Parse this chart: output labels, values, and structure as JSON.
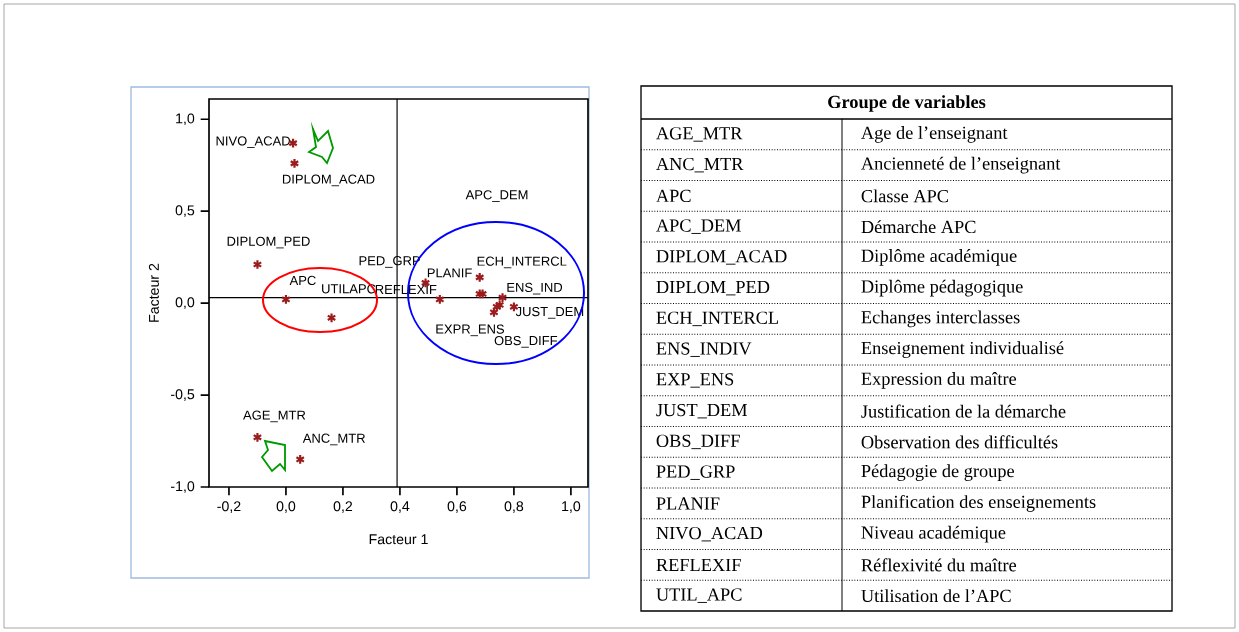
{
  "chart_data": [
    {
      "type": "scatter",
      "xlabel": "Facteur 1",
      "ylabel": "Facteur 2",
      "x": [
        0.025,
        0.03,
        -0.1,
        0.0,
        0.16,
        -0.1,
        0.05,
        0.49,
        0.54,
        0.68,
        0.68,
        0.69,
        0.76,
        0.8,
        0.75,
        0.74,
        0.73
      ],
      "series": [
        {
          "color": "#9b1c1c",
          "values": [
            0.87,
            0.76,
            0.21,
            0.02,
            -0.08,
            -0.73,
            -0.85,
            0.11,
            0.02,
            0.14,
            0.05,
            0.05,
            0.03,
            -0.02,
            -0.01,
            -0.02,
            -0.05
          ]
        }
      ],
      "marker": "cross",
      "xlim": [
        -0.27,
        1.06
      ],
      "ylim": [
        -1.0,
        1.11
      ],
      "xticks": [
        {
          "value": -0.2,
          "label": "-0,2"
        },
        {
          "value": 0.0,
          "label": "0,0"
        },
        {
          "value": 0.2,
          "label": "0,2"
        },
        {
          "value": 0.4,
          "label": "0,4"
        },
        {
          "value": 0.6,
          "label": "0,6"
        },
        {
          "value": 0.8,
          "label": "0,8"
        },
        {
          "value": 1.0,
          "label": "1,0"
        }
      ],
      "yticks": [
        {
          "value": -1.0,
          "label": "-1,0"
        },
        {
          "value": -0.5,
          "label": "-0,5"
        },
        {
          "value": 0.0,
          "label": "0,0"
        },
        {
          "value": 0.5,
          "label": "0,5"
        },
        {
          "value": 1.0,
          "label": "1,0"
        }
      ],
      "ref_lines": [
        {
          "axis": "x",
          "value": 0.39,
          "color": "#000000"
        },
        {
          "axis": "y",
          "value": 0.03,
          "color": "#000000"
        }
      ],
      "annotations": [
        {
          "text": "NIVO_ACAD",
          "x": 0.025,
          "y": 0.87
        },
        {
          "text": "DIPLOM_ACAD",
          "x": 0.03,
          "y": 0.76
        },
        {
          "text": "DIPLOM_PED",
          "x": -0.1,
          "y": 0.21
        },
        {
          "text": "APC",
          "x": 0.0,
          "y": 0.02
        },
        {
          "text": "UTILAPC",
          "x": 0.16,
          "y": -0.08
        },
        {
          "text": "PED_GRP",
          "x": 0.49,
          "y": 0.11
        },
        {
          "text": "PLANIF",
          "x": 0.49,
          "y": 0.11
        },
        {
          "text": "REFLEXIF",
          "x": 0.54,
          "y": 0.02
        },
        "APC_DEM",
        {
          "text": "ECH_INTERCL",
          "x": 0.68,
          "y": 0.14
        },
        {
          "text": "ENS_IND",
          "x": 0.76,
          "y": 0.03
        },
        {
          "text": "JUST_DEM",
          "x": 0.8,
          "y": -0.02
        },
        {
          "text": "EXPR_ENS",
          "x": 0.73,
          "y": -0.05
        },
        {
          "text": "OBS_DIFF",
          "x": 0.74,
          "y": -0.02
        },
        {
          "text": "AGE_MTR",
          "x": -0.1,
          "y": -0.73
        },
        {
          "text": "ANC_MTR",
          "x": 0.05,
          "y": -0.85
        }
      ]
    },
    {
      "type": "other",
      "title": "Groupe de variables",
      "categories": [
        "AGE_MTR",
        "ANC_MTR",
        "APC",
        "APC_DEM",
        "DIPLOM_ACAD",
        "DIPLOM_PED",
        "ECH_INTERCL",
        "ENS_INDIV",
        "EXP_ENS",
        "JUST_DEM",
        "OBS_DIFF",
        "PED_GRP",
        "PLANIF",
        "NIVO_ACAD",
        "REFLEXIF",
        "UTIL_APC"
      ],
      "annotations": [
        "Age de l’enseignant",
        "Ancienneté de l’enseignant",
        "Classe APC",
        "Démarche APC",
        "Diplôme académique",
        "Diplôme pédagogique",
        "Echanges interclasses",
        "Enseignement individualisé",
        "Expression du maître",
        "Justification de la démarche",
        "Observation des difficultés",
        "Pédagogie de groupe",
        "Planification des enseignements",
        "Niveau académique",
        "Réflexivité du maître",
        "Utilisation de l’APC"
      ]
    }
  ]
}
